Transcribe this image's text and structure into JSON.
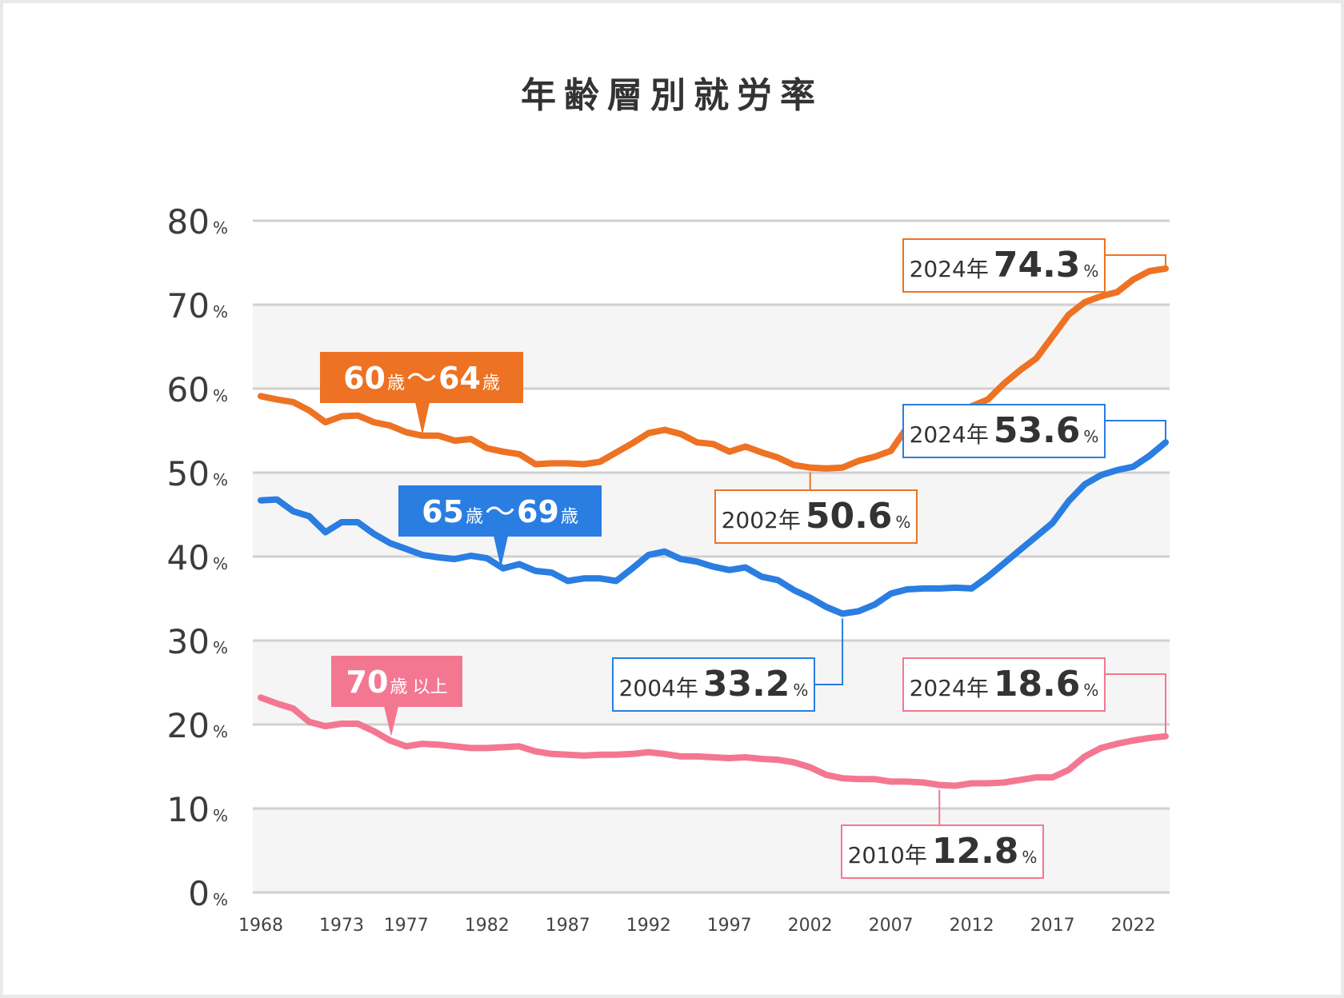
{
  "colors": {
    "orange": "#ed7223",
    "blue": "#2a7de1",
    "pink": "#f47791",
    "grid": "#d0d0d0",
    "band": "#f5f5f5"
  },
  "chart_data": {
    "type": "line",
    "title": "年齢層別就労率",
    "ylim": [
      0,
      80
    ],
    "yticks": [
      {
        "value": 80,
        "label": "80",
        "unit": "%"
      },
      {
        "value": 70,
        "label": "70",
        "unit": "%"
      },
      {
        "value": 60,
        "label": "60",
        "unit": "%"
      },
      {
        "value": 50,
        "label": "50",
        "unit": "%"
      },
      {
        "value": 40,
        "label": "40",
        "unit": "%"
      },
      {
        "value": 30,
        "label": "30",
        "unit": "%"
      },
      {
        "value": 20,
        "label": "20",
        "unit": "%"
      },
      {
        "value": 10,
        "label": "10",
        "unit": "%"
      },
      {
        "value": 0,
        "label": "0",
        "unit": "%"
      }
    ],
    "xlim": [
      1968,
      2024
    ],
    "xticks": [
      "1968",
      "1973",
      "1977",
      "1982",
      "1987",
      "1992",
      "1997",
      "2002",
      "2007",
      "2012",
      "2017",
      "2022"
    ],
    "x": [
      1968,
      1969,
      1970,
      1971,
      1972,
      1973,
      1974,
      1975,
      1976,
      1977,
      1978,
      1979,
      1980,
      1981,
      1982,
      1983,
      1984,
      1985,
      1986,
      1987,
      1988,
      1989,
      1990,
      1991,
      1992,
      1993,
      1994,
      1995,
      1996,
      1997,
      1998,
      1999,
      2000,
      2001,
      2002,
      2003,
      2004,
      2005,
      2006,
      2007,
      2008,
      2009,
      2010,
      2011,
      2012,
      2013,
      2014,
      2015,
      2016,
      2017,
      2018,
      2019,
      2020,
      2021,
      2022,
      2023,
      2024
    ],
    "series": [
      {
        "name": "60歳〜64歳",
        "label_main1": "60",
        "label_unit1": "歳",
        "label_wave": "〜",
        "label_main2": "64",
        "label_unit2": "歳",
        "color": "#ed7223",
        "values": [
          59.1,
          58.7,
          58.4,
          57.4,
          56.0,
          56.7,
          56.8,
          56.0,
          55.6,
          54.8,
          54.4,
          54.4,
          53.8,
          54.0,
          52.9,
          52.5,
          52.2,
          51.0,
          51.1,
          51.1,
          51.0,
          51.3,
          52.4,
          53.5,
          54.7,
          55.1,
          54.6,
          53.6,
          53.4,
          52.5,
          53.1,
          52.4,
          51.8,
          50.9,
          50.6,
          50.5,
          50.6,
          51.4,
          51.9,
          52.6,
          55.4,
          57.0,
          57.0,
          57.2,
          57.9,
          58.7,
          60.6,
          62.2,
          63.6,
          66.2,
          68.8,
          70.3,
          71.0,
          71.5,
          73.0,
          74.0,
          74.3
        ]
      },
      {
        "name": "65歳〜69歳",
        "label_main1": "65",
        "label_unit1": "歳",
        "label_wave": "〜",
        "label_main2": "69",
        "label_unit2": "歳",
        "color": "#2a7de1",
        "values": [
          46.7,
          46.8,
          45.4,
          44.8,
          42.9,
          44.1,
          44.1,
          42.7,
          41.6,
          40.9,
          40.2,
          39.9,
          39.7,
          40.1,
          39.8,
          38.6,
          39.1,
          38.3,
          38.1,
          37.1,
          37.4,
          37.4,
          37.1,
          38.6,
          40.2,
          40.6,
          39.7,
          39.4,
          38.8,
          38.4,
          38.7,
          37.6,
          37.2,
          36.0,
          35.1,
          34.0,
          33.2,
          33.5,
          34.3,
          35.6,
          36.1,
          36.2,
          36.2,
          36.3,
          36.2,
          37.6,
          39.2,
          40.8,
          42.4,
          44.0,
          46.6,
          48.6,
          49.7,
          50.3,
          50.7,
          52.0,
          53.6
        ]
      },
      {
        "name": "70歳以上",
        "label_main1": "70",
        "label_unit1": "歳",
        "label_suffix": "以上",
        "color": "#f47791",
        "values": [
          23.2,
          22.5,
          21.9,
          20.3,
          19.8,
          20.1,
          20.1,
          19.2,
          18.1,
          17.4,
          17.7,
          17.6,
          17.4,
          17.2,
          17.2,
          17.3,
          17.4,
          16.8,
          16.5,
          16.4,
          16.3,
          16.4,
          16.4,
          16.5,
          16.7,
          16.5,
          16.2,
          16.2,
          16.1,
          16.0,
          16.1,
          15.9,
          15.8,
          15.5,
          14.9,
          14.0,
          13.6,
          13.5,
          13.5,
          13.2,
          13.2,
          13.1,
          12.8,
          12.7,
          13.0,
          13.0,
          13.1,
          13.4,
          13.7,
          13.7,
          14.6,
          16.2,
          17.2,
          17.7,
          18.1,
          18.4,
          18.6
        ]
      }
    ],
    "annotations": [
      {
        "series": 0,
        "year_text": "2024年",
        "value_text": "74.3",
        "unit": "%",
        "x": 2024,
        "y": 74.3
      },
      {
        "series": 0,
        "year_text": "2002年",
        "value_text": "50.6",
        "unit": "%",
        "x": 2002,
        "y": 50.6
      },
      {
        "series": 1,
        "year_text": "2024年",
        "value_text": "53.6",
        "unit": "%",
        "x": 2024,
        "y": 53.6
      },
      {
        "series": 1,
        "year_text": "2004年",
        "value_text": "33.2",
        "unit": "%",
        "x": 2004,
        "y": 33.2
      },
      {
        "series": 2,
        "year_text": "2024年",
        "value_text": "18.6",
        "unit": "%",
        "x": 2024,
        "y": 18.6
      },
      {
        "series": 2,
        "year_text": "2010年",
        "value_text": "12.8",
        "unit": "%",
        "x": 2010,
        "y": 12.8
      }
    ]
  }
}
